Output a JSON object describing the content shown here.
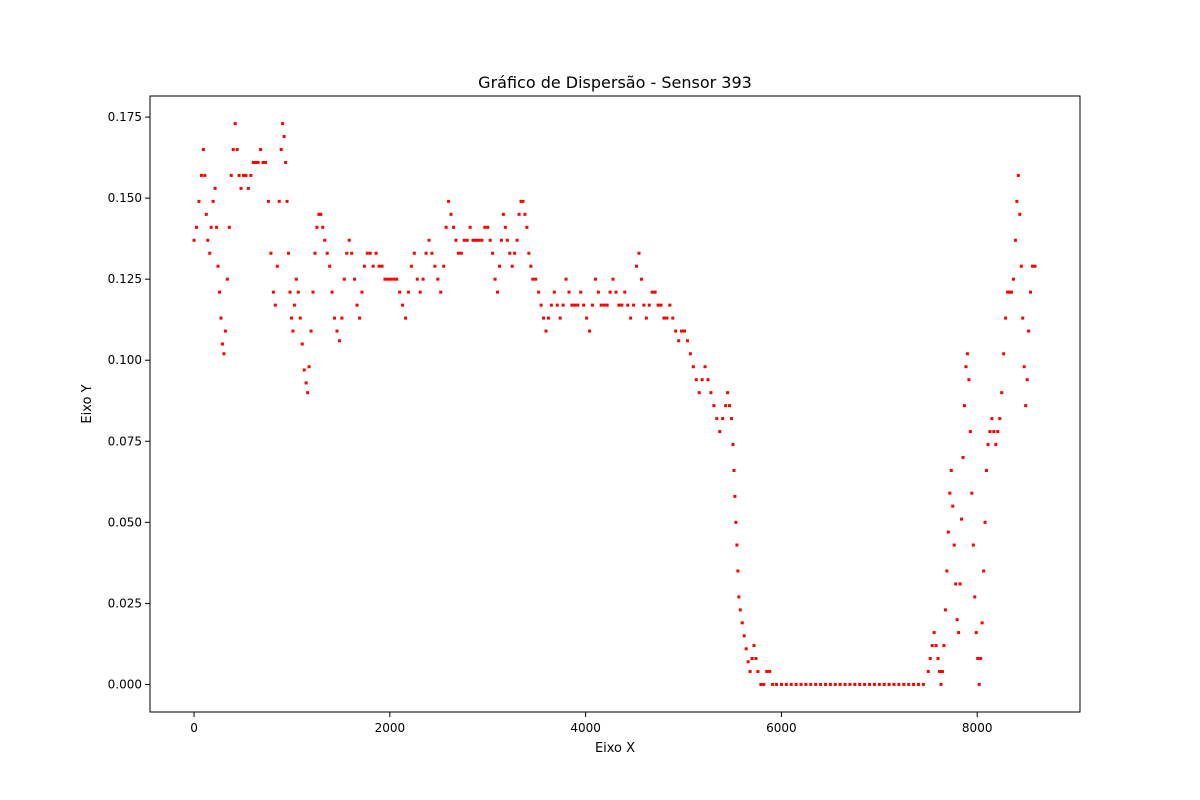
{
  "chart_data": {
    "type": "scatter",
    "title": "Gráfico de Dispersão - Sensor 393",
    "xlabel": "Eixo X",
    "ylabel": "Eixo Y",
    "xlim": [
      -450,
      9050
    ],
    "ylim": [
      -0.0085,
      0.1815
    ],
    "x_ticks": [
      0,
      2000,
      4000,
      6000,
      8000
    ],
    "x_tick_labels": [
      "0",
      "2000",
      "4000",
      "6000",
      "8000"
    ],
    "y_ticks": [
      0.0,
      0.025,
      0.05,
      0.075,
      0.1,
      0.125,
      0.15,
      0.175
    ],
    "y_tick_labels": [
      "0.000",
      "0.025",
      "0.050",
      "0.075",
      "0.100",
      "0.125",
      "0.150",
      "0.175"
    ],
    "grid": false,
    "marker_color": "#ff0000",
    "marker_shape": "small-square",
    "points": [
      [
        0,
        0.137
      ],
      [
        25,
        0.141
      ],
      [
        50,
        0.149
      ],
      [
        75,
        0.157
      ],
      [
        95,
        0.165
      ],
      [
        110,
        0.157
      ],
      [
        125,
        0.145
      ],
      [
        140,
        0.137
      ],
      [
        160,
        0.133
      ],
      [
        175,
        0.141
      ],
      [
        195,
        0.149
      ],
      [
        215,
        0.153
      ],
      [
        230,
        0.141
      ],
      [
        245,
        0.129
      ],
      [
        260,
        0.121
      ],
      [
        275,
        0.113
      ],
      [
        290,
        0.105
      ],
      [
        305,
        0.102
      ],
      [
        320,
        0.109
      ],
      [
        340,
        0.125
      ],
      [
        360,
        0.141
      ],
      [
        380,
        0.157
      ],
      [
        400,
        0.165
      ],
      [
        420,
        0.173
      ],
      [
        440,
        0.165
      ],
      [
        460,
        0.157
      ],
      [
        480,
        0.153
      ],
      [
        505,
        0.157
      ],
      [
        530,
        0.157
      ],
      [
        555,
        0.153
      ],
      [
        580,
        0.157
      ],
      [
        605,
        0.161
      ],
      [
        630,
        0.161
      ],
      [
        655,
        0.161
      ],
      [
        680,
        0.165
      ],
      [
        705,
        0.161
      ],
      [
        730,
        0.161
      ],
      [
        760,
        0.149
      ],
      [
        785,
        0.133
      ],
      [
        810,
        0.121
      ],
      [
        830,
        0.117
      ],
      [
        850,
        0.129
      ],
      [
        870,
        0.149
      ],
      [
        890,
        0.165
      ],
      [
        905,
        0.173
      ],
      [
        920,
        0.169
      ],
      [
        935,
        0.161
      ],
      [
        950,
        0.149
      ],
      [
        965,
        0.133
      ],
      [
        980,
        0.121
      ],
      [
        995,
        0.113
      ],
      [
        1010,
        0.109
      ],
      [
        1025,
        0.117
      ],
      [
        1045,
        0.125
      ],
      [
        1065,
        0.121
      ],
      [
        1085,
        0.113
      ],
      [
        1105,
        0.105
      ],
      [
        1125,
        0.097
      ],
      [
        1145,
        0.093
      ],
      [
        1160,
        0.09
      ],
      [
        1175,
        0.098
      ],
      [
        1195,
        0.109
      ],
      [
        1215,
        0.121
      ],
      [
        1235,
        0.133
      ],
      [
        1255,
        0.141
      ],
      [
        1275,
        0.145
      ],
      [
        1295,
        0.145
      ],
      [
        1315,
        0.141
      ],
      [
        1335,
        0.137
      ],
      [
        1360,
        0.133
      ],
      [
        1385,
        0.129
      ],
      [
        1410,
        0.121
      ],
      [
        1435,
        0.113
      ],
      [
        1460,
        0.109
      ],
      [
        1485,
        0.106
      ],
      [
        1510,
        0.113
      ],
      [
        1535,
        0.125
      ],
      [
        1560,
        0.133
      ],
      [
        1585,
        0.137
      ],
      [
        1610,
        0.133
      ],
      [
        1640,
        0.125
      ],
      [
        1665,
        0.117
      ],
      [
        1690,
        0.113
      ],
      [
        1715,
        0.121
      ],
      [
        1740,
        0.129
      ],
      [
        1770,
        0.133
      ],
      [
        1800,
        0.133
      ],
      [
        1830,
        0.129
      ],
      [
        1860,
        0.133
      ],
      [
        1890,
        0.129
      ],
      [
        1920,
        0.129
      ],
      [
        1950,
        0.125
      ],
      [
        1980,
        0.125
      ],
      [
        2010,
        0.125
      ],
      [
        2040,
        0.125
      ],
      [
        2070,
        0.125
      ],
      [
        2100,
        0.121
      ],
      [
        2130,
        0.117
      ],
      [
        2160,
        0.113
      ],
      [
        2190,
        0.121
      ],
      [
        2220,
        0.129
      ],
      [
        2250,
        0.133
      ],
      [
        2280,
        0.125
      ],
      [
        2310,
        0.121
      ],
      [
        2340,
        0.125
      ],
      [
        2370,
        0.133
      ],
      [
        2400,
        0.137
      ],
      [
        2430,
        0.133
      ],
      [
        2460,
        0.129
      ],
      [
        2490,
        0.125
      ],
      [
        2520,
        0.121
      ],
      [
        2550,
        0.129
      ],
      [
        2575,
        0.141
      ],
      [
        2600,
        0.149
      ],
      [
        2625,
        0.145
      ],
      [
        2650,
        0.141
      ],
      [
        2675,
        0.137
      ],
      [
        2700,
        0.133
      ],
      [
        2730,
        0.133
      ],
      [
        2760,
        0.137
      ],
      [
        2790,
        0.137
      ],
      [
        2820,
        0.141
      ],
      [
        2850,
        0.137
      ],
      [
        2880,
        0.137
      ],
      [
        2910,
        0.137
      ],
      [
        2940,
        0.137
      ],
      [
        2970,
        0.141
      ],
      [
        3000,
        0.141
      ],
      [
        3025,
        0.137
      ],
      [
        3050,
        0.133
      ],
      [
        3075,
        0.125
      ],
      [
        3100,
        0.121
      ],
      [
        3120,
        0.129
      ],
      [
        3140,
        0.137
      ],
      [
        3160,
        0.145
      ],
      [
        3180,
        0.141
      ],
      [
        3200,
        0.137
      ],
      [
        3225,
        0.133
      ],
      [
        3250,
        0.129
      ],
      [
        3275,
        0.133
      ],
      [
        3300,
        0.137
      ],
      [
        3320,
        0.145
      ],
      [
        3340,
        0.149
      ],
      [
        3360,
        0.149
      ],
      [
        3380,
        0.145
      ],
      [
        3400,
        0.141
      ],
      [
        3420,
        0.133
      ],
      [
        3440,
        0.129
      ],
      [
        3460,
        0.125
      ],
      [
        3490,
        0.125
      ],
      [
        3520,
        0.121
      ],
      [
        3545,
        0.117
      ],
      [
        3570,
        0.113
      ],
      [
        3595,
        0.109
      ],
      [
        3620,
        0.113
      ],
      [
        3650,
        0.117
      ],
      [
        3680,
        0.121
      ],
      [
        3710,
        0.117
      ],
      [
        3740,
        0.113
      ],
      [
        3770,
        0.117
      ],
      [
        3800,
        0.125
      ],
      [
        3830,
        0.121
      ],
      [
        3860,
        0.117
      ],
      [
        3890,
        0.117
      ],
      [
        3920,
        0.117
      ],
      [
        3950,
        0.121
      ],
      [
        3980,
        0.117
      ],
      [
        4010,
        0.113
      ],
      [
        4040,
        0.109
      ],
      [
        4070,
        0.117
      ],
      [
        4100,
        0.125
      ],
      [
        4130,
        0.121
      ],
      [
        4160,
        0.117
      ],
      [
        4190,
        0.117
      ],
      [
        4220,
        0.117
      ],
      [
        4250,
        0.121
      ],
      [
        4280,
        0.125
      ],
      [
        4310,
        0.121
      ],
      [
        4340,
        0.117
      ],
      [
        4370,
        0.117
      ],
      [
        4400,
        0.121
      ],
      [
        4430,
        0.117
      ],
      [
        4460,
        0.113
      ],
      [
        4490,
        0.117
      ],
      [
        4520,
        0.129
      ],
      [
        4545,
        0.133
      ],
      [
        4570,
        0.125
      ],
      [
        4595,
        0.117
      ],
      [
        4620,
        0.113
      ],
      [
        4650,
        0.117
      ],
      [
        4680,
        0.121
      ],
      [
        4710,
        0.121
      ],
      [
        4740,
        0.117
      ],
      [
        4770,
        0.117
      ],
      [
        4800,
        0.113
      ],
      [
        4830,
        0.113
      ],
      [
        4860,
        0.117
      ],
      [
        4890,
        0.113
      ],
      [
        4920,
        0.109
      ],
      [
        4950,
        0.106
      ],
      [
        4980,
        0.109
      ],
      [
        5010,
        0.109
      ],
      [
        5040,
        0.106
      ],
      [
        5070,
        0.102
      ],
      [
        5100,
        0.098
      ],
      [
        5130,
        0.094
      ],
      [
        5160,
        0.09
      ],
      [
        5190,
        0.094
      ],
      [
        5220,
        0.098
      ],
      [
        5250,
        0.094
      ],
      [
        5280,
        0.09
      ],
      [
        5310,
        0.086
      ],
      [
        5340,
        0.082
      ],
      [
        5370,
        0.078
      ],
      [
        5400,
        0.082
      ],
      [
        5430,
        0.086
      ],
      [
        5450,
        0.09
      ],
      [
        5470,
        0.086
      ],
      [
        5490,
        0.082
      ],
      [
        5505,
        0.074
      ],
      [
        5515,
        0.066
      ],
      [
        5525,
        0.058
      ],
      [
        5535,
        0.05
      ],
      [
        5545,
        0.043
      ],
      [
        5555,
        0.035
      ],
      [
        5565,
        0.027
      ],
      [
        5580,
        0.023
      ],
      [
        5600,
        0.019
      ],
      [
        5620,
        0.015
      ],
      [
        5640,
        0.011
      ],
      [
        5660,
        0.007
      ],
      [
        5680,
        0.004
      ],
      [
        5700,
        0.008
      ],
      [
        5720,
        0.012
      ],
      [
        5740,
        0.008
      ],
      [
        5760,
        0.004
      ],
      [
        5790,
        0.0
      ],
      [
        5820,
        0.0
      ],
      [
        5850,
        0.004
      ],
      [
        5880,
        0.004
      ],
      [
        5910,
        0.0
      ],
      [
        5950,
        0.0
      ],
      [
        6000,
        0.0
      ],
      [
        6050,
        0.0
      ],
      [
        6100,
        0.0
      ],
      [
        6150,
        0.0
      ],
      [
        6200,
        0.0
      ],
      [
        6250,
        0.0
      ],
      [
        6300,
        0.0
      ],
      [
        6350,
        0.0
      ],
      [
        6400,
        0.0
      ],
      [
        6450,
        0.0
      ],
      [
        6500,
        0.0
      ],
      [
        6550,
        0.0
      ],
      [
        6600,
        0.0
      ],
      [
        6650,
        0.0
      ],
      [
        6700,
        0.0
      ],
      [
        6750,
        0.0
      ],
      [
        6800,
        0.0
      ],
      [
        6850,
        0.0
      ],
      [
        6900,
        0.0
      ],
      [
        6950,
        0.0
      ],
      [
        7000,
        0.0
      ],
      [
        7050,
        0.0
      ],
      [
        7100,
        0.0
      ],
      [
        7150,
        0.0
      ],
      [
        7200,
        0.0
      ],
      [
        7250,
        0.0
      ],
      [
        7300,
        0.0
      ],
      [
        7350,
        0.0
      ],
      [
        7400,
        0.0
      ],
      [
        7450,
        0.0
      ],
      [
        7500,
        0.004
      ],
      [
        7520,
        0.008
      ],
      [
        7540,
        0.012
      ],
      [
        7560,
        0.016
      ],
      [
        7580,
        0.012
      ],
      [
        7600,
        0.008
      ],
      [
        7615,
        0.004
      ],
      [
        7630,
        0.0
      ],
      [
        7645,
        0.004
      ],
      [
        7660,
        0.012
      ],
      [
        7675,
        0.023
      ],
      [
        7690,
        0.035
      ],
      [
        7705,
        0.047
      ],
      [
        7720,
        0.059
      ],
      [
        7735,
        0.066
      ],
      [
        7750,
        0.055
      ],
      [
        7765,
        0.043
      ],
      [
        7780,
        0.031
      ],
      [
        7795,
        0.02
      ],
      [
        7810,
        0.016
      ],
      [
        7825,
        0.031
      ],
      [
        7840,
        0.051
      ],
      [
        7855,
        0.07
      ],
      [
        7870,
        0.086
      ],
      [
        7885,
        0.098
      ],
      [
        7900,
        0.102
      ],
      [
        7915,
        0.094
      ],
      [
        7930,
        0.078
      ],
      [
        7945,
        0.059
      ],
      [
        7960,
        0.043
      ],
      [
        7975,
        0.027
      ],
      [
        7990,
        0.016
      ],
      [
        8005,
        0.008
      ],
      [
        8020,
        0.0
      ],
      [
        8035,
        0.008
      ],
      [
        8050,
        0.019
      ],
      [
        8065,
        0.035
      ],
      [
        8080,
        0.05
      ],
      [
        8095,
        0.066
      ],
      [
        8110,
        0.074
      ],
      [
        8130,
        0.078
      ],
      [
        8150,
        0.082
      ],
      [
        8170,
        0.078
      ],
      [
        8190,
        0.074
      ],
      [
        8210,
        0.078
      ],
      [
        8230,
        0.082
      ],
      [
        8250,
        0.09
      ],
      [
        8270,
        0.102
      ],
      [
        8290,
        0.113
      ],
      [
        8310,
        0.121
      ],
      [
        8330,
        0.121
      ],
      [
        8350,
        0.121
      ],
      [
        8370,
        0.125
      ],
      [
        8390,
        0.137
      ],
      [
        8405,
        0.149
      ],
      [
        8420,
        0.157
      ],
      [
        8435,
        0.145
      ],
      [
        8450,
        0.129
      ],
      [
        8465,
        0.113
      ],
      [
        8480,
        0.098
      ],
      [
        8495,
        0.086
      ],
      [
        8510,
        0.094
      ],
      [
        8525,
        0.109
      ],
      [
        8545,
        0.121
      ],
      [
        8565,
        0.129
      ],
      [
        8590,
        0.129
      ]
    ]
  }
}
